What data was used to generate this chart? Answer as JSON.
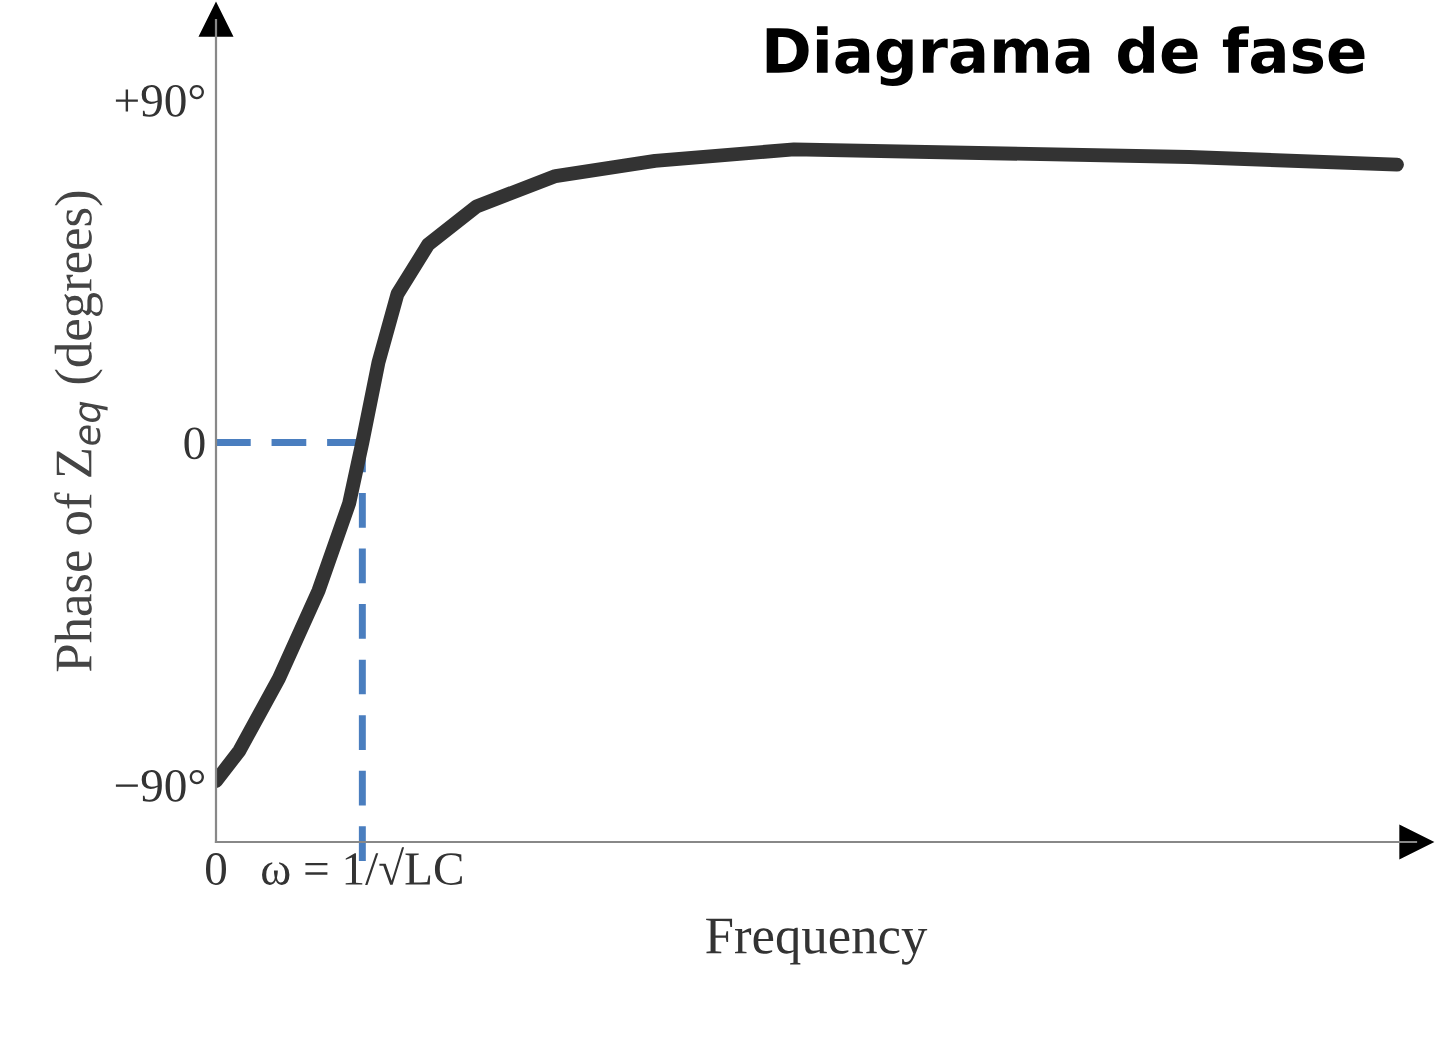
{
  "chart_data": {
    "type": "line",
    "title": "Diagrama de fase",
    "xlabel": "Frequency",
    "ylabel": "Phase of Z$_{eq}$ (degrees)",
    "x": [
      0,
      0.16,
      0.43,
      0.7,
      0.91,
      1.0,
      1.11,
      1.24,
      1.45,
      1.78,
      2.32,
      3.0,
      3.95,
      5.3,
      6.65,
      8.07
    ],
    "series": [
      {
        "color": "#333333",
        "values": [
          -89,
          -81,
          -62,
          -39,
          -16,
          0,
          21,
          39,
          52,
          62,
          70,
          74,
          77,
          76,
          75,
          73
        ]
      }
    ],
    "xlim": [
      0,
      8.2
    ],
    "ylim": [
      -105,
      111
    ],
    "xticks": [
      0,
      {
        "value": 1,
        "label": "ω = 1/√LC"
      }
    ],
    "yticks": [
      {
        "value": 90,
        "label": "+90°"
      },
      0,
      {
        "value": -90,
        "label": "−90°"
      }
    ],
    "ref_lines": [
      {
        "axis": "y",
        "value": 0,
        "color": "#4a7ebf",
        "line_style": "dashed"
      },
      {
        "axis": "x",
        "value": 1,
        "color": "#4a7ebf",
        "line_style": "dashed"
      }
    ],
    "grid": false,
    "legend": false,
    "marker": "none",
    "line_style": "solid"
  }
}
